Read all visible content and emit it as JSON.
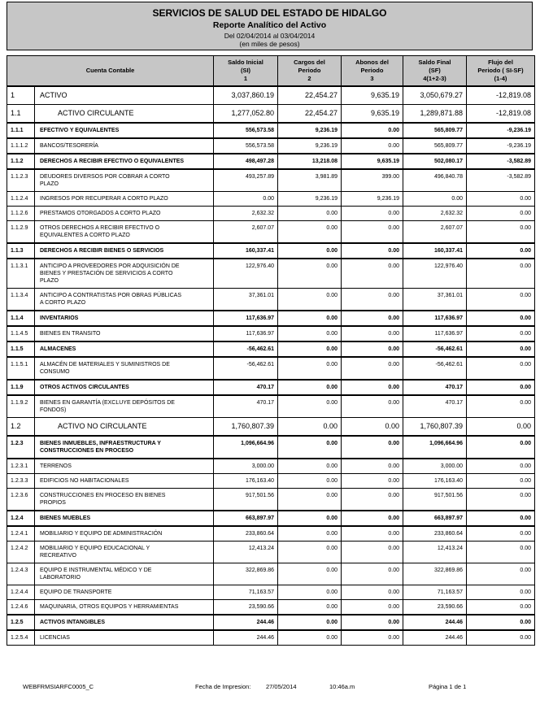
{
  "report": {
    "title": "SERVICIOS DE SALUD DEL ESTADO DE HIDALGO",
    "subtitle": "Reporte Analítico del Activo",
    "period": "Del 02/04/2014 al 03/04/2014",
    "units": "(en miles de pesos)"
  },
  "table": {
    "header": {
      "cuenta": "Cuenta Contable",
      "si": [
        "Saldo Inicial",
        "(SI)",
        "1"
      ],
      "cargos": [
        "Cargos del",
        "Periodo",
        "2"
      ],
      "abonos": [
        "Abonos del",
        "Periodo",
        "3"
      ],
      "sf": [
        "Saldo Final",
        "(SF)",
        "4(1+2-3)"
      ],
      "flujo": [
        "Flujo del",
        "Periodo ( SI-SF)",
        "(1-4)"
      ]
    },
    "rows": [
      {
        "code": "1",
        "name": "ACTIVO",
        "style": "level1",
        "si": "3,037,860.19",
        "cargos": "22,454.27",
        "abonos": "9,635.19",
        "sf": "3,050,679.27",
        "flujo": "-12,819.08"
      },
      {
        "code": "1.1",
        "name": "ACTIVO CIRCULANTE",
        "style": "level2",
        "si": "1,277,052.80",
        "cargos": "22,454.27",
        "abonos": "9,635.19",
        "sf": "1,289,871.88",
        "flujo": "-12,819.08"
      },
      {
        "code": "1.1.1",
        "name": "EFECTIVO Y EQUIVALENTES",
        "style": "group",
        "si": "556,573.58",
        "cargos": "9,236.19",
        "abonos": "0.00",
        "sf": "565,809.77",
        "flujo": "-9,236.19"
      },
      {
        "code": "1.1.1.2",
        "name": "BANCOS/TESORERÍA",
        "style": "detail",
        "si": "556,573.58",
        "cargos": "9,236.19",
        "abonos": "0.00",
        "sf": "565,809.77",
        "flujo": "-9,236.19"
      },
      {
        "code": "1.1.2",
        "name": "DERECHOS A RECIBIR EFECTIVO O EQUIVALENTES",
        "style": "group",
        "si": "498,497.28",
        "cargos": "13,218.08",
        "abonos": "9,635.19",
        "sf": "502,080.17",
        "flujo": "-3,582.89"
      },
      {
        "code": "1.1.2.3",
        "name": "DEUDORES DIVERSOS POR COBRAR A CORTO PLAZO",
        "style": "detail",
        "si": "493,257.89",
        "cargos": "3,981.89",
        "abonos": "399.00",
        "sf": "496,840.78",
        "flujo": "-3,582.89"
      },
      {
        "code": "1.1.2.4",
        "name": "INGRESOS POR RECUPERAR A CORTO PLAZO",
        "style": "detail",
        "si": "0.00",
        "cargos": "9,236.19",
        "abonos": "9,236.19",
        "sf": "0.00",
        "flujo": "0.00"
      },
      {
        "code": "1.1.2.6",
        "name": "PRESTAMOS OTORGADOS A CORTO PLAZO",
        "style": "detail",
        "si": "2,632.32",
        "cargos": "0.00",
        "abonos": "0.00",
        "sf": "2,632.32",
        "flujo": "0.00"
      },
      {
        "code": "1.1.2.9",
        "name": "OTROS DERECHOS A RECIBIR EFECTIVO O EQUIVALENTES A CORTO PLAZO",
        "style": "detail",
        "si": "2,607.07",
        "cargos": "0.00",
        "abonos": "0.00",
        "sf": "2,607.07",
        "flujo": "0.00"
      },
      {
        "code": "1.1.3",
        "name": "DERECHOS A RECIBIR BIENES O SERVICIOS",
        "style": "group",
        "si": "160,337.41",
        "cargos": "0.00",
        "abonos": "0.00",
        "sf": "160,337.41",
        "flujo": "0.00"
      },
      {
        "code": "1.1.3.1",
        "name": "ANTICIPO A PROVEEDORES POR ADQUISICIÓN DE BIENES Y PRESTACIÓN DE SERVICIOS A CORTO PLAZO",
        "style": "detail",
        "si": "122,976.40",
        "cargos": "0.00",
        "abonos": "0.00",
        "sf": "122,976.40",
        "flujo": "0.00"
      },
      {
        "code": "1.1.3.4",
        "name": "ANTICIPO A CONTRATISTAS POR OBRAS PÚBLICAS A CORTO PLAZO",
        "style": "detail",
        "si": "37,361.01",
        "cargos": "0.00",
        "abonos": "0.00",
        "sf": "37,361.01",
        "flujo": "0.00"
      },
      {
        "code": "1.1.4",
        "name": "INVENTARIOS",
        "style": "group",
        "si": "117,636.97",
        "cargos": "0.00",
        "abonos": "0.00",
        "sf": "117,636.97",
        "flujo": "0.00"
      },
      {
        "code": "1.1.4.5",
        "name": "BIENES EN TRANSITO",
        "style": "detail",
        "si": "117,636.97",
        "cargos": "0.00",
        "abonos": "0.00",
        "sf": "117,636.97",
        "flujo": "0.00"
      },
      {
        "code": "1.1.5",
        "name": "ALMACENES",
        "style": "group",
        "si": "-56,462.61",
        "cargos": "0.00",
        "abonos": "0.00",
        "sf": "-56,462.61",
        "flujo": "0.00"
      },
      {
        "code": "1.1.5.1",
        "name": "ALMACÉN DE MATERIALES Y SUMINISTROS DE CONSUMO",
        "style": "detail",
        "si": "-56,462.61",
        "cargos": "0.00",
        "abonos": "0.00",
        "sf": "-56,462.61",
        "flujo": "0.00"
      },
      {
        "code": "1.1.9",
        "name": "OTROS ACTIVOS CIRCULANTES",
        "style": "group",
        "si": "470.17",
        "cargos": "0.00",
        "abonos": "0.00",
        "sf": "470.17",
        "flujo": "0.00"
      },
      {
        "code": "1.1.9.2",
        "name": "BIENES EN GARANTÍA (EXCLUYE DEPÓSITOS DE FONDOS)",
        "style": "detail",
        "si": "470.17",
        "cargos": "0.00",
        "abonos": "0.00",
        "sf": "470.17",
        "flujo": "0.00"
      },
      {
        "code": "1.2",
        "name": "ACTIVO NO CIRCULANTE",
        "style": "level2",
        "si": "1,760,807.39",
        "cargos": "0.00",
        "abonos": "0.00",
        "sf": "1,760,807.39",
        "flujo": "0.00"
      },
      {
        "code": "1.2.3",
        "name": "BIENES INMUEBLES, INFRAESTRUCTURA Y CONSTRUCCIONES EN PROCESO",
        "style": "group",
        "si": "1,096,664.96",
        "cargos": "0.00",
        "abonos": "0.00",
        "sf": "1,096,664.96",
        "flujo": "0.00"
      },
      {
        "code": "1.2.3.1",
        "name": "TERRENOS",
        "style": "detail",
        "si": "3,000.00",
        "cargos": "0.00",
        "abonos": "0.00",
        "sf": "3,000.00",
        "flujo": "0.00"
      },
      {
        "code": "1.2.3.3",
        "name": "EDIFICIOS NO HABITACIONALES",
        "style": "detail",
        "si": "176,163.40",
        "cargos": "0.00",
        "abonos": "0.00",
        "sf": "176,163.40",
        "flujo": "0.00"
      },
      {
        "code": "1.2.3.6",
        "name": "CONSTRUCCIONES EN PROCESO EN BIENES PROPIOS",
        "style": "detail",
        "si": "917,501.56",
        "cargos": "0.00",
        "abonos": "0.00",
        "sf": "917,501.56",
        "flujo": "0.00"
      },
      {
        "code": "1.2.4",
        "name": "BIENES MUEBLES",
        "style": "group",
        "si": "663,897.97",
        "cargos": "0.00",
        "abonos": "0.00",
        "sf": "663,897.97",
        "flujo": "0.00"
      },
      {
        "code": "1.2.4.1",
        "name": "MOBILIARIO Y EQUIPO DE ADMINISTRACIÓN",
        "style": "detail",
        "si": "233,860.64",
        "cargos": "0.00",
        "abonos": "0.00",
        "sf": "233,860.64",
        "flujo": "0.00"
      },
      {
        "code": "1.2.4.2",
        "name": "MOBILIARIO Y EQUIPO EDUCACIONAL Y RECREATIVO",
        "style": "detail",
        "si": "12,413.24",
        "cargos": "0.00",
        "abonos": "0.00",
        "sf": "12,413.24",
        "flujo": "0.00"
      },
      {
        "code": "1.2.4.3",
        "name": "EQUIPO E INSTRUMENTAL MÉDICO Y DE LABORATORIO",
        "style": "detail",
        "si": "322,869.86",
        "cargos": "0.00",
        "abonos": "0.00",
        "sf": "322,869.86",
        "flujo": "0.00"
      },
      {
        "code": "1.2.4.4",
        "name": "EQUIPO DE TRANSPORTE",
        "style": "detail",
        "si": "71,163.57",
        "cargos": "0.00",
        "abonos": "0.00",
        "sf": "71,163.57",
        "flujo": "0.00"
      },
      {
        "code": "1.2.4.6",
        "name": "MAQUINARIA, OTROS EQUIPOS Y HERRAMIENTAS",
        "style": "detail",
        "si": "23,590.66",
        "cargos": "0.00",
        "abonos": "0.00",
        "sf": "23,590.66",
        "flujo": "0.00"
      },
      {
        "code": "1.2.5",
        "name": "ACTIVOS INTANGIBLES",
        "style": "group",
        "si": "244.46",
        "cargos": "0.00",
        "abonos": "0.00",
        "sf": "244.46",
        "flujo": "0.00"
      },
      {
        "code": "1.2.5.4",
        "name": "LICENCIAS",
        "style": "detail",
        "si": "244.46",
        "cargos": "0.00",
        "abonos": "0.00",
        "sf": "244.46",
        "flujo": "0.00"
      }
    ]
  },
  "footer": {
    "doc_id": "WEBFRMSIARFC0005_C",
    "print_label": "Fecha de Impresion:",
    "print_date": "27/05/2014",
    "print_time": "10:46a.m",
    "page": "Página 1 de 1"
  },
  "colors": {
    "banner_gray": "#c6c6c6",
    "border_black": "#000000"
  }
}
